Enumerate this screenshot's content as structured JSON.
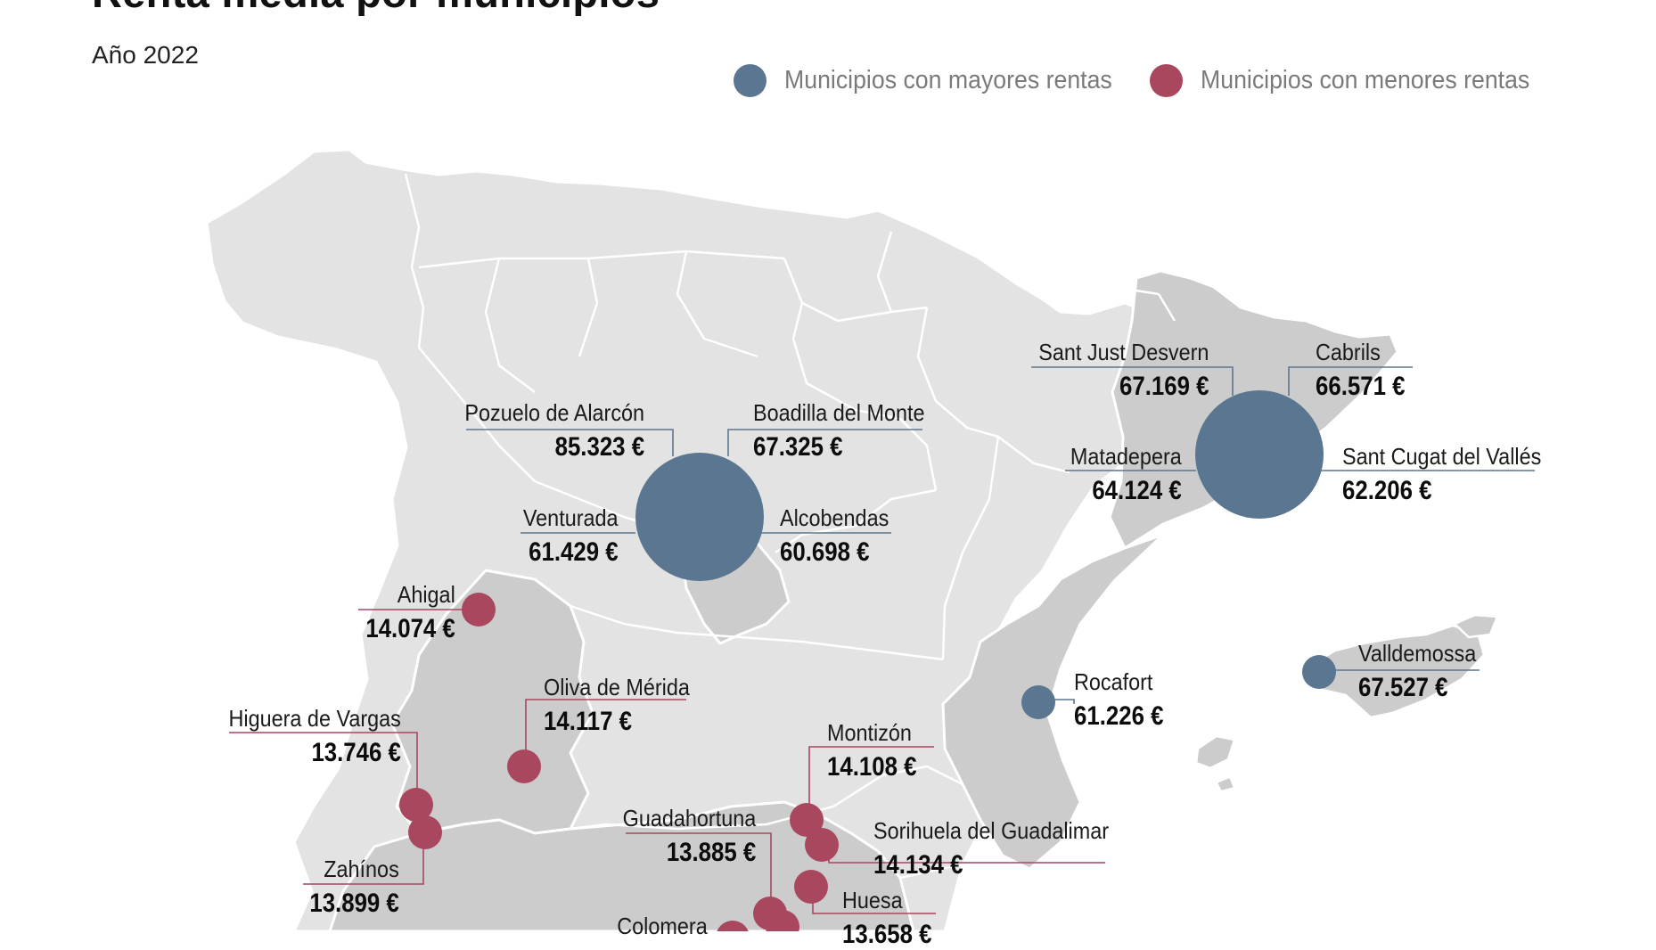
{
  "header": {
    "title": "Renta media por municipios",
    "subtitle": "Año 2022"
  },
  "legend": {
    "high_label": "Municipios con mayores rentas",
    "low_label": "Municipios con menores rentas"
  },
  "colors": {
    "high": "#5b7690",
    "low": "#a8475e",
    "land_light": "#e3e3e3",
    "land_dark": "#cccccc",
    "borders": "#ffffff",
    "high_line": "#5b7690",
    "low_line": "#a8475e"
  },
  "municipalities": {
    "pozuelo": {
      "name": "Pozuelo de Alarcón",
      "value": "85.323 €"
    },
    "boadilla": {
      "name": "Boadilla del Monte",
      "value": "67.325 €"
    },
    "venturada": {
      "name": "Venturada",
      "value": "61.429 €"
    },
    "alcobendas": {
      "name": "Alcobendas",
      "value": "60.698 €"
    },
    "santjust": {
      "name": "Sant Just Desvern",
      "value": "67.169 €"
    },
    "cabrils": {
      "name": "Cabrils",
      "value": "66.571 €"
    },
    "matadepera": {
      "name": "Matadepera",
      "value": "64.124 €"
    },
    "santcugat": {
      "name": "Sant Cugat del Vallés",
      "value": "62.206 €"
    },
    "rocafort": {
      "name": "Rocafort",
      "value": "61.226 €"
    },
    "valldemossa": {
      "name": "Valldemossa",
      "value": "67.527 €"
    },
    "ahigal": {
      "name": "Ahigal",
      "value": "14.074 €"
    },
    "oliva": {
      "name": "Oliva de Mérida",
      "value": "14.117 €"
    },
    "higuera": {
      "name": "Higuera de Vargas",
      "value": "13.746 €"
    },
    "zahinos": {
      "name": "Zahínos",
      "value": "13.899 €"
    },
    "montizon": {
      "name": "Montizón",
      "value": "14.108 €"
    },
    "guadahortuna": {
      "name": "Guadahortuna",
      "value": "13.885 €"
    },
    "sorihuela": {
      "name": "Sorihuela del Guadalimar",
      "value": "14.134 €"
    },
    "huesa": {
      "name": "Huesa",
      "value": "13.658 €"
    },
    "colomera": {
      "name": "Colomera",
      "value": ""
    }
  }
}
